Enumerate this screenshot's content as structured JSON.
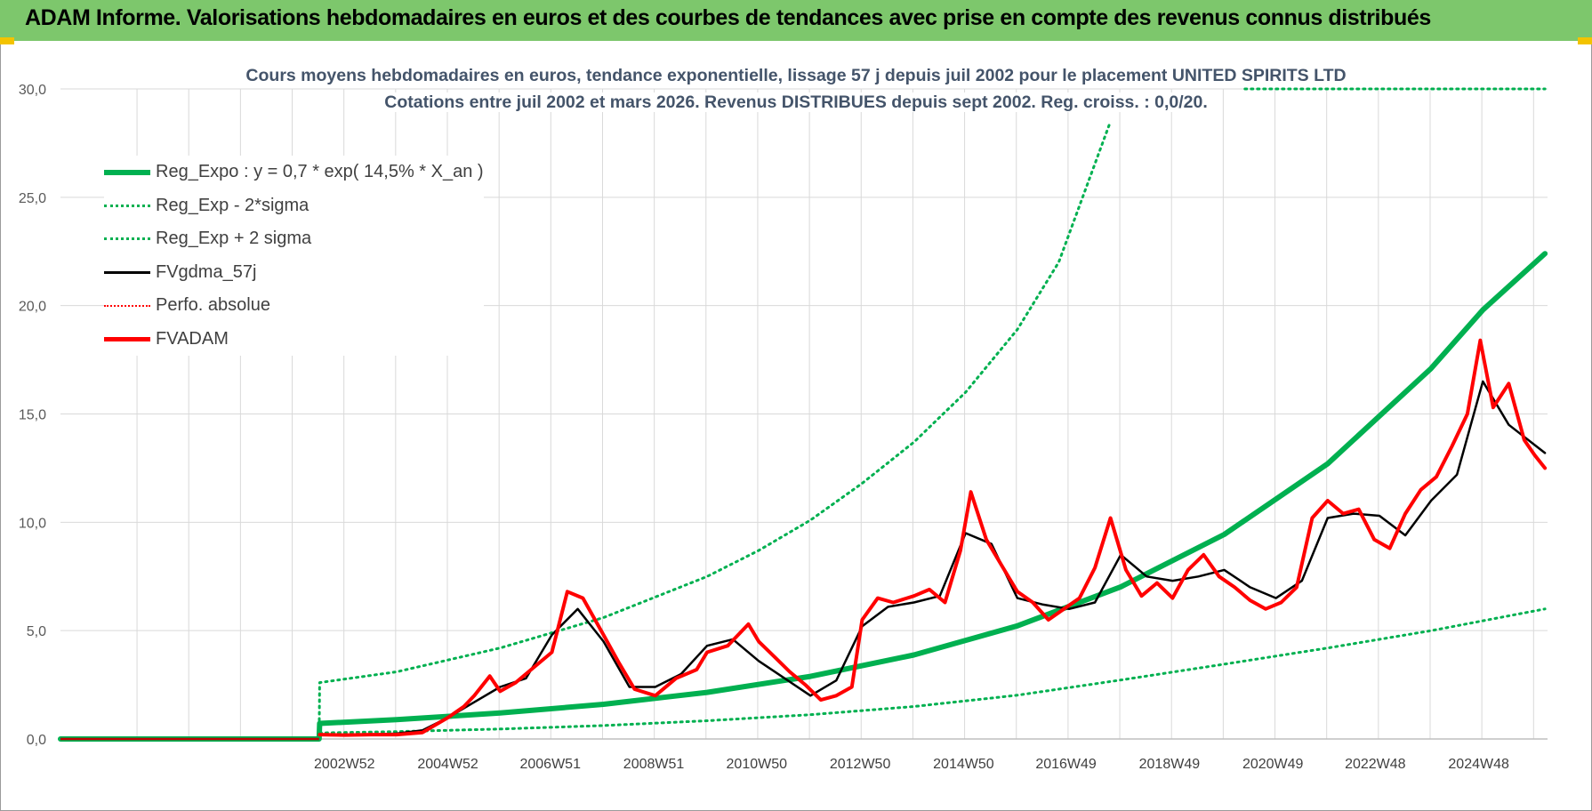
{
  "header": {
    "title": "ADAM Informe. Valorisations hebdomadaires en euros et des courbes de tendances avec prise en compte des revenus connus distribués"
  },
  "colors": {
    "banner": "#7dc76c",
    "reg_expo": "#00b050",
    "fvgdma": "#000000",
    "fvadam": "#ff0000",
    "grid": "#d9d9d9",
    "axis_text": "#595959"
  },
  "chart_data": {
    "type": "line",
    "title": "Cours moyens hebdomadaires en euros, tendance exponentielle, lissage 57 j depuis juil 2002 pour le placement UNITED SPIRITS LTD",
    "subtitle": "Cotations entre juil 2002 et mars 2026. Revenus DISTRIBUES depuis sept 2002. Reg. croiss. : 0,0/20.",
    "ylim": [
      0,
      30
    ],
    "yticks": [
      "0,0",
      "5,0",
      "10,0",
      "15,0",
      "20,0",
      "25,0",
      "30,0"
    ],
    "xlim": [
      1997.5,
      2026.25
    ],
    "xtick_labels": [
      "2002W52",
      "2004W52",
      "2006W51",
      "2008W51",
      "2010W50",
      "2012W50",
      "2014W50",
      "2016W49",
      "2018W49",
      "2020W49",
      "2022W48",
      "2024W48"
    ],
    "xtick_years": [
      2002.99,
      2004.99,
      2006.97,
      2008.97,
      2010.96,
      2012.96,
      2014.96,
      2016.94,
      2018.94,
      2020.94,
      2022.92,
      2024.92
    ],
    "grid": true,
    "legend_position": "top-left",
    "legend": [
      {
        "key": "reg_expo",
        "label": "Reg_Expo : y = 0,7 * exp( 14,5% *  X_an )",
        "style": "solid-thick",
        "color": "#00b050"
      },
      {
        "key": "reg_minus",
        "label": "Reg_Exp - 2*sigma",
        "style": "dotted",
        "color": "#00b050"
      },
      {
        "key": "reg_plus",
        "label": "Reg_Exp + 2 sigma",
        "style": "dotted",
        "color": "#00b050"
      },
      {
        "key": "fvgdma",
        "label": "FVgdma_57j",
        "style": "solid",
        "color": "#000000"
      },
      {
        "key": "perfo",
        "label": "Perfo. absolue",
        "style": "dotted-thin",
        "color": "#ff0000"
      },
      {
        "key": "fvadam",
        "label": "FVADAM",
        "style": "solid-thick",
        "color": "#ff0000"
      }
    ],
    "series": [
      {
        "name": "Reg_Expo : y = 0,7 * exp( 14,5% *  X_an )",
        "x": [
          1997.5,
          2002.5,
          2002.51,
          2004,
          2006,
          2008,
          2010,
          2012,
          2014,
          2016,
          2018,
          2020,
          2022,
          2024,
          2025,
          2026.2
        ],
        "y": [
          0,
          0,
          0.72,
          0.89,
          1.2,
          1.6,
          2.15,
          2.89,
          3.88,
          5.22,
          7.02,
          9.44,
          12.7,
          17.1,
          19.8,
          22.4
        ]
      },
      {
        "name": "Reg_Exp - 2*sigma",
        "x": [
          2002.51,
          2004,
          2006,
          2008,
          2010,
          2012,
          2014,
          2016,
          2018,
          2020,
          2022,
          2024,
          2026.2
        ],
        "y": [
          0.28,
          0.34,
          0.46,
          0.62,
          0.84,
          1.12,
          1.5,
          2.02,
          2.72,
          3.45,
          4.2,
          5.0,
          6.0
        ]
      },
      {
        "name": "Reg_Exp + 2 sigma",
        "x": [
          2002.5,
          2002.51,
          2004,
          2006,
          2007,
          2008,
          2010,
          2011,
          2012,
          2013,
          2014,
          2015,
          2016,
          2016.8,
          2017.8
        ],
        "y": [
          0,
          2.6,
          3.1,
          4.2,
          4.9,
          5.6,
          7.5,
          8.7,
          10.1,
          11.8,
          13.7,
          16.0,
          18.9,
          22.0,
          28.5
        ]
      },
      {
        "name": "Reg_Exp + 2 sigma",
        "x": [
          2020.4,
          2026.2
        ],
        "y": [
          30,
          30
        ]
      },
      {
        "name": "FVgdma_57j",
        "x": [
          2002.51,
          2003,
          2003.5,
          2004,
          2004.5,
          2005,
          2005.5,
          2006,
          2006.5,
          2007,
          2007.5,
          2008,
          2008.5,
          2009,
          2009.5,
          2010,
          2010.5,
          2011,
          2011.5,
          2012,
          2012.5,
          2013,
          2013.5,
          2014,
          2014.5,
          2015,
          2015.5,
          2016,
          2016.5,
          2017,
          2017.5,
          2018,
          2018.5,
          2019,
          2019.5,
          2020,
          2020.5,
          2021,
          2021.5,
          2022,
          2022.5,
          2023,
          2023.5,
          2024,
          2024.5,
          2025,
          2025.5,
          2026.2
        ],
        "y": [
          0.2,
          0.2,
          0.2,
          0.25,
          0.4,
          1.0,
          1.7,
          2.4,
          2.8,
          4.8,
          6.0,
          4.5,
          2.4,
          2.4,
          3.0,
          4.3,
          4.6,
          3.6,
          2.8,
          2.0,
          2.7,
          5.2,
          6.1,
          6.3,
          6.6,
          9.5,
          9.0,
          6.5,
          6.2,
          6.0,
          6.3,
          8.5,
          7.5,
          7.3,
          7.5,
          7.8,
          7.0,
          6.5,
          7.3,
          10.2,
          10.4,
          10.3,
          9.4,
          11.0,
          12.2,
          16.5,
          14.5,
          13.2
        ]
      },
      {
        "name": "FVADAM",
        "x": [
          2002.51,
          2003,
          2003.5,
          2004,
          2004.5,
          2005,
          2005.3,
          2005.5,
          2005.8,
          2006,
          2006.3,
          2006.6,
          2007,
          2007.3,
          2007.6,
          2008,
          2008.3,
          2008.6,
          2009,
          2009.4,
          2009.8,
          2010,
          2010.4,
          2010.8,
          2011,
          2011.3,
          2011.6,
          2011.9,
          2012.2,
          2012.5,
          2012.8,
          2013,
          2013.3,
          2013.6,
          2014,
          2014.3,
          2014.6,
          2014.9,
          2015.1,
          2015.4,
          2015.7,
          2016,
          2016.3,
          2016.6,
          2016.9,
          2017.2,
          2017.5,
          2017.8,
          2018.1,
          2018.4,
          2018.7,
          2019,
          2019.3,
          2019.6,
          2019.9,
          2020.2,
          2020.5,
          2020.8,
          2021.1,
          2021.4,
          2021.7,
          2022,
          2022.3,
          2022.6,
          2022.9,
          2023.2,
          2023.5,
          2023.8,
          2024.1,
          2024.4,
          2024.7,
          2024.95,
          2025.2,
          2025.5,
          2025.8,
          2026.0,
          2026.2
        ],
        "y": [
          0.2,
          0.18,
          0.2,
          0.2,
          0.3,
          1.0,
          1.5,
          2.0,
          2.9,
          2.2,
          2.6,
          3.2,
          4.0,
          6.8,
          6.5,
          4.8,
          3.5,
          2.3,
          2.0,
          2.8,
          3.2,
          4.0,
          4.3,
          5.3,
          4.5,
          3.8,
          3.1,
          2.5,
          1.8,
          2.0,
          2.4,
          5.5,
          6.5,
          6.3,
          6.6,
          6.9,
          6.3,
          8.7,
          11.4,
          9.2,
          8.0,
          6.8,
          6.3,
          5.5,
          6.0,
          6.5,
          7.9,
          10.2,
          7.8,
          6.6,
          7.2,
          6.5,
          7.8,
          8.5,
          7.5,
          7.0,
          6.4,
          6.0,
          6.3,
          7.0,
          10.2,
          11.0,
          10.4,
          10.6,
          9.2,
          8.8,
          10.4,
          11.5,
          12.1,
          13.5,
          15.0,
          18.4,
          15.3,
          16.4,
          13.8,
          13.1,
          12.5
        ]
      }
    ]
  }
}
